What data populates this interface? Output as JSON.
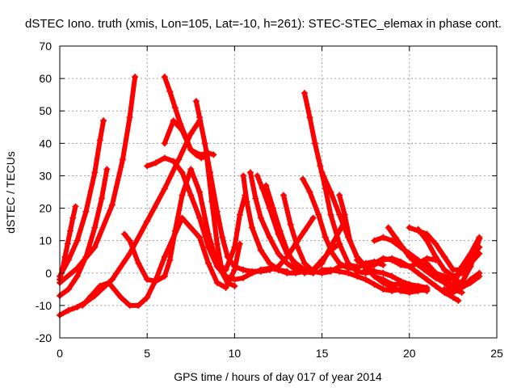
{
  "chart_data": {
    "type": "scatter",
    "title": "dSTEC Iono. truth (xmis, Lon=105, Lat=-10, h=261): STEC-STEC_elemax in phase cont.",
    "xlabel": "GPS time / hours of day 017 of year 2014",
    "ylabel": "dSTEC  / TECUs",
    "xlim": [
      0,
      25
    ],
    "ylim": [
      -20,
      70
    ],
    "xticks": [
      0,
      5,
      10,
      15,
      20,
      25
    ],
    "yticks": [
      -20,
      -10,
      0,
      10,
      20,
      30,
      40,
      50,
      60,
      70
    ],
    "grid": true,
    "legend": "none",
    "colors": {
      "series": "#ff0000",
      "grid": "#a0a0a0",
      "axes": "#000000"
    },
    "series": [
      {
        "x": [
          0.0,
          0.15,
          0.3,
          0.45,
          0.6,
          0.75,
          0.9
        ],
        "y": [
          -2.0,
          1.0,
          5.0,
          9.0,
          13.0,
          17.0,
          20.5
        ]
      },
      {
        "x": [
          0.0,
          0.5,
          1.0,
          1.5,
          2.0,
          2.3,
          2.5
        ],
        "y": [
          -1.0,
          4.0,
          10.0,
          19.0,
          31.0,
          41.0,
          47.0
        ]
      },
      {
        "x": [
          0.0,
          0.5,
          1.0,
          1.5,
          2.0,
          2.4,
          2.7
        ],
        "y": [
          -7.0,
          -5.0,
          -1.0,
          5.0,
          14.0,
          23.0,
          32.0
        ]
      },
      {
        "x": [
          0.0,
          1.0,
          2.0,
          3.0,
          3.6,
          4.0,
          4.3
        ],
        "y": [
          -3.0,
          1.5,
          8.0,
          21.0,
          35.0,
          48.0,
          60.5
        ]
      },
      {
        "x": [
          0.0,
          0.5,
          1.0,
          1.5,
          2.0,
          3.0,
          4.0,
          5.0,
          6.0,
          6.8,
          7.5,
          8.0
        ],
        "y": [
          -13.0,
          -11.5,
          -10.5,
          -9.0,
          -7.0,
          -2.0,
          6.0,
          16.0,
          26.0,
          35.0,
          43.0,
          47.0
        ]
      },
      {
        "x": [
          1.3,
          1.8,
          2.3,
          2.8,
          3.5,
          4.0,
          4.5,
          5.0,
          5.5,
          6.0,
          7.0,
          8.0,
          8.5,
          9.0,
          9.5,
          10.0,
          10.3
        ],
        "y": [
          -10.0,
          -7.0,
          -4.0,
          -3.0,
          -7.5,
          -10.0,
          -10.0,
          -7.5,
          -2.0,
          5.0,
          17.0,
          11.0,
          3.0,
          -3.0,
          -4.5,
          1.0,
          9.0
        ]
      },
      {
        "x": [
          3.7,
          4.0,
          4.5,
          5.0,
          5.5,
          6.0,
          6.3,
          6.6,
          7.0,
          7.5,
          8.0,
          8.5,
          9.0,
          9.5,
          10.0,
          10.3,
          10.6
        ],
        "y": [
          12.0,
          10.0,
          3.0,
          -2.0,
          -2.5,
          -1.0,
          4.0,
          13.0,
          24.0,
          32.0,
          25.0,
          12.0,
          3.0,
          1.0,
          8.0,
          18.0,
          24.0
        ]
      },
      {
        "x": [
          5.0,
          5.5,
          6.0,
          6.5,
          7.0,
          7.5,
          8.0,
          8.5,
          9.0,
          9.5,
          10.0,
          10.5,
          11.0,
          11.5,
          12.0,
          12.5,
          13.0
        ],
        "y": [
          33.0,
          34.0,
          35.5,
          34.5,
          31.0,
          24.0,
          17.0,
          8.0,
          2.0,
          -1.0,
          -2.0,
          -1.5,
          0.0,
          1.0,
          1.5,
          1.0,
          0.5
        ]
      },
      {
        "x": [
          6.0,
          6.3,
          6.6,
          6.9,
          7.2,
          7.5,
          7.8,
          8.1,
          8.4,
          8.7,
          9.0,
          9.3,
          9.6,
          10.0
        ],
        "y": [
          60.5,
          56.0,
          51.0,
          46.0,
          42.0,
          38.0,
          36.5,
          35.5,
          36.0,
          22.0,
          9.0,
          0.0,
          -3.0,
          -4.0
        ]
      },
      {
        "x": [
          6.0,
          6.5,
          7.0,
          7.5,
          8.0,
          8.5,
          8.8
        ],
        "y": [
          40.0,
          47.0,
          44.0,
          38.0,
          36.5,
          37.0,
          36.5
        ]
      },
      {
        "x": [
          7.8,
          8.0,
          8.3,
          8.6,
          9.0,
          9.3,
          9.6,
          10.0,
          10.5,
          11.0,
          11.5,
          12.0,
          12.5,
          13.0,
          13.5,
          14.0,
          14.5
        ],
        "y": [
          53.0,
          48.0,
          40.0,
          31.0,
          19.0,
          11.0,
          5.0,
          2.0,
          1.0,
          0.5,
          0.5,
          1.0,
          2.0,
          5.0,
          9.0,
          13.0,
          17.0
        ]
      },
      {
        "x": [
          10.5,
          10.7,
          11.0,
          11.5,
          12.0,
          12.5,
          13.0,
          13.5,
          14.0
        ],
        "y": [
          30.0,
          22.0,
          14.0,
          7.0,
          3.0,
          1.0,
          0.0,
          0.0,
          0.5
        ]
      },
      {
        "x": [
          10.9,
          11.2,
          11.5,
          12.0,
          12.5,
          13.0,
          13.5,
          14.0,
          14.5
        ],
        "y": [
          31.0,
          23.0,
          17.0,
          11.0,
          6.0,
          3.0,
          1.0,
          0.5,
          0.0
        ]
      },
      {
        "x": [
          11.3,
          11.6,
          12.0,
          12.5,
          13.0,
          13.5,
          14.0,
          14.5,
          15.0,
          15.5,
          16.0,
          16.3
        ],
        "y": [
          30.0,
          26.0,
          20.0,
          12.0,
          6.0,
          3.0,
          1.0,
          1.0,
          3.0,
          8.0,
          13.0,
          16.0
        ]
      },
      {
        "x": [
          11.8,
          12.2,
          12.6,
          13.0,
          13.5,
          14.0,
          14.5,
          15.0,
          15.5,
          16.0
        ],
        "y": [
          27.0,
          20.0,
          13.0,
          7.0,
          2.0,
          0.0,
          1.0,
          4.0,
          7.0,
          9.0
        ]
      },
      {
        "x": [
          12.8,
          13.2,
          13.6,
          14.0,
          14.5,
          15.0,
          15.5,
          16.0,
          16.5,
          17.0
        ],
        "y": [
          24.0,
          15.0,
          8.0,
          3.0,
          0.5,
          0.0,
          0.5,
          2.0,
          2.5,
          2.0
        ]
      },
      {
        "x": [
          13.9,
          14.3,
          14.8,
          15.2,
          15.6,
          16.0,
          16.5,
          17.0,
          17.5,
          18.0,
          18.5
        ],
        "y": [
          29.0,
          25.0,
          18.0,
          11.0,
          6.0,
          3.0,
          1.5,
          1.5,
          3.0,
          3.5,
          2.5
        ]
      },
      {
        "x": [
          14.0,
          14.3,
          14.6,
          14.9,
          15.2,
          15.5,
          16.0,
          16.5,
          17.0,
          17.5,
          18.0
        ],
        "y": [
          55.5,
          48.0,
          40.0,
          33.0,
          26.0,
          18.0,
          9.0,
          3.0,
          0.5,
          0.0,
          0.5
        ]
      },
      {
        "x": [
          15.0,
          15.5,
          16.0,
          16.5,
          17.0,
          17.5,
          18.0,
          18.5,
          19.0,
          19.5,
          20.0,
          20.5,
          21.0
        ],
        "y": [
          31.0,
          25.0,
          18.0,
          11.0,
          5.0,
          2.0,
          0.5,
          0.0,
          -1.0,
          -2.5,
          -3.5,
          -4.0,
          -4.5
        ]
      },
      {
        "x": [
          16.0,
          16.3,
          16.6,
          17.0,
          17.5,
          18.0,
          18.5,
          19.0,
          19.5,
          20.0,
          20.5,
          21.0
        ],
        "y": [
          24.0,
          18.0,
          10.0,
          5.0,
          1.5,
          -1.0,
          -3.0,
          -4.5,
          -5.5,
          -6.0,
          -5.5,
          -5.0
        ]
      },
      {
        "x": [
          15.0,
          15.5,
          16.0,
          16.5,
          17.0,
          17.5,
          18.0,
          18.5,
          19.0,
          19.5,
          20.0,
          20.5,
          21.0
        ],
        "y": [
          1.0,
          1.0,
          0.5,
          0.0,
          -1.0,
          -2.0,
          -3.5,
          -5.0,
          -5.5,
          -5.0,
          -4.5,
          -5.0,
          -5.5
        ]
      },
      {
        "x": [
          17.0,
          17.5,
          18.0,
          18.5,
          19.0,
          19.5,
          20.0,
          20.5,
          21.0,
          21.5,
          22.0,
          22.5,
          22.8
        ],
        "y": [
          4.0,
          2.0,
          2.5,
          4.0,
          4.5,
          3.5,
          2.0,
          0.0,
          -2.0,
          -4.0,
          -6.0,
          -7.5,
          -8.5
        ]
      },
      {
        "x": [
          17.5,
          18.0,
          18.5,
          19.0,
          19.5,
          20.0,
          20.5,
          21.0,
          21.5
        ],
        "y": [
          1.0,
          3.0,
          4.5,
          4.0,
          2.5,
          2.0,
          3.0,
          4.5,
          4.0
        ]
      },
      {
        "x": [
          18.0,
          18.5,
          19.0,
          19.5,
          20.0,
          20.5,
          21.0
        ],
        "y": [
          -1.0,
          -2.0,
          -3.5,
          -3.5,
          -4.0,
          -4.5,
          -5.5
        ]
      },
      {
        "x": [
          18.0,
          18.5,
          19.0,
          19.5,
          20.0,
          20.5,
          21.0,
          21.5,
          22.0,
          22.5,
          23.0
        ],
        "y": [
          10.0,
          11.0,
          10.0,
          8.0,
          6.0,
          4.0,
          2.0,
          0.0,
          -1.0,
          -2.0,
          -3.0
        ]
      },
      {
        "x": [
          18.8,
          19.2,
          19.6,
          20.0,
          20.5,
          21.0,
          21.5,
          22.0,
          22.5,
          23.0
        ],
        "y": [
          14.0,
          11.0,
          8.0,
          5.0,
          2.5,
          0.5,
          -1.5,
          -3.0,
          -5.0,
          -6.0
        ]
      },
      {
        "x": [
          20.0,
          20.5,
          21.0,
          21.5,
          22.0,
          22.5,
          23.0,
          23.5,
          24.0
        ],
        "y": [
          14.0,
          13.0,
          12.0,
          9.0,
          5.0,
          1.0,
          1.0,
          4.0,
          8.0
        ]
      },
      {
        "x": [
          20.5,
          21.0,
          21.5,
          22.0,
          22.5,
          23.0,
          23.5,
          24.0
        ],
        "y": [
          13.5,
          10.0,
          5.0,
          1.0,
          -1.0,
          0.0,
          3.0,
          6.0
        ]
      },
      {
        "x": [
          21.0,
          21.5,
          22.0,
          22.5,
          23.0,
          23.5,
          24.0
        ],
        "y": [
          3.0,
          0.0,
          -2.0,
          -4.0,
          -4.5,
          -3.0,
          -1.0
        ]
      },
      {
        "x": [
          22.0,
          22.5,
          23.0,
          23.5,
          24.0
        ],
        "y": [
          -2.0,
          -4.0,
          -3.0,
          2.0,
          10.5
        ]
      },
      {
        "x": [
          22.5,
          23.0,
          23.5,
          24.0
        ],
        "y": [
          -4.0,
          2.0,
          6.0,
          11.0
        ]
      },
      {
        "x": [
          22.0,
          22.5,
          23.0,
          23.5,
          24.0
        ],
        "y": [
          -5.0,
          -6.0,
          -4.5,
          -2.0,
          0.0
        ]
      }
    ]
  }
}
